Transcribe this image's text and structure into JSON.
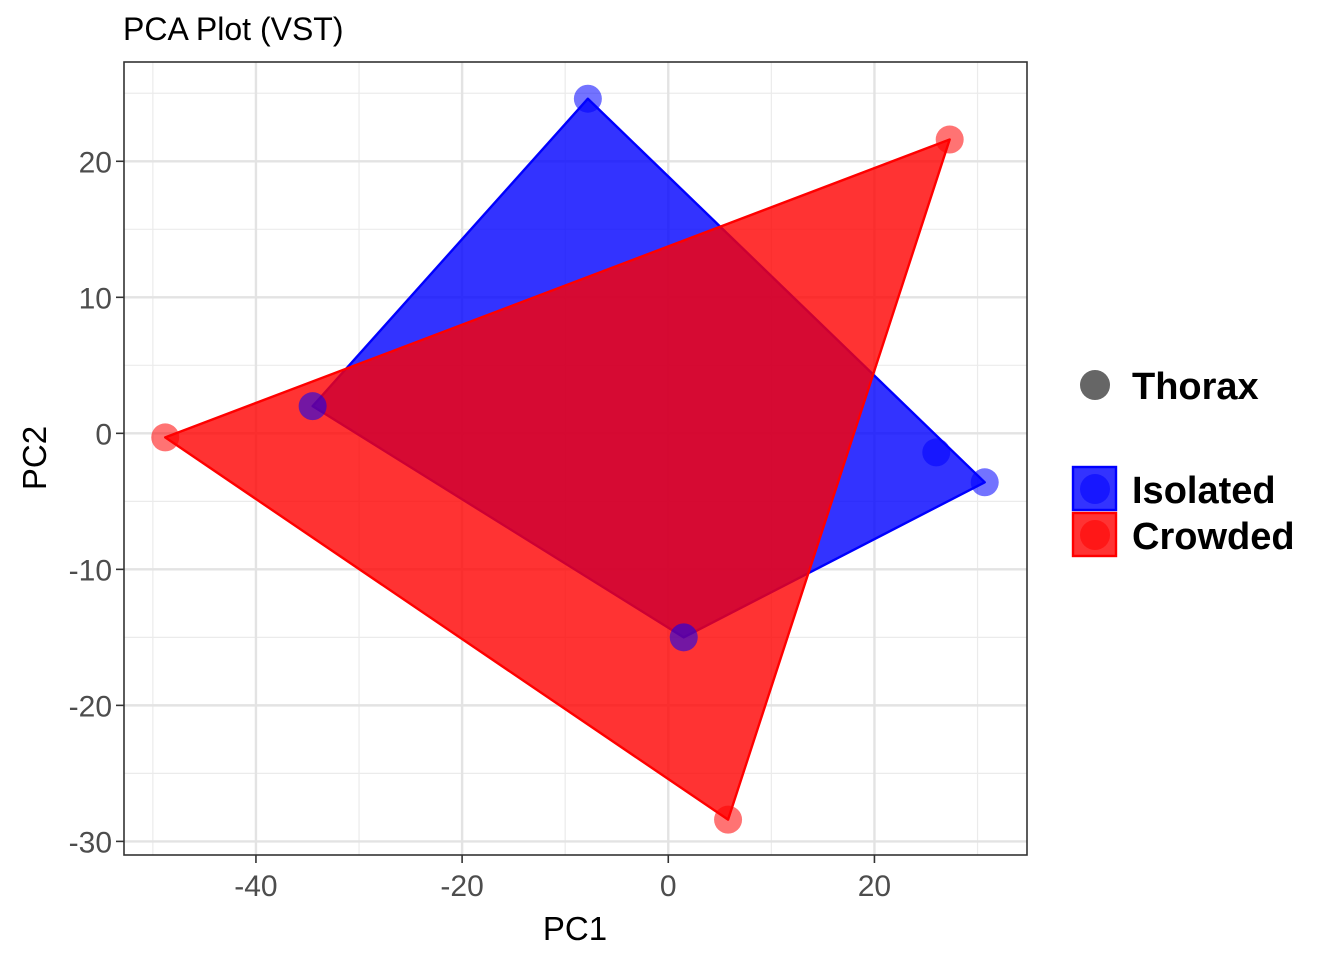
{
  "chart_data": {
    "type": "scatter",
    "title": "PCA Plot (VST)",
    "xlabel": "PC1",
    "ylabel": "PC2",
    "xlim": [
      -52.8,
      34.8
    ],
    "ylim": [
      -31.0,
      27.3
    ],
    "xticks": [
      -40,
      -20,
      0,
      20
    ],
    "yticks": [
      -30,
      -20,
      -10,
      0,
      10,
      20
    ],
    "grid": true,
    "legend_position": "right",
    "shape_legend": [
      {
        "label": "Thorax",
        "color": "#666666"
      }
    ],
    "series": [
      {
        "name": "Isolated",
        "color": "#0000ff",
        "hull": true,
        "points": [
          [
            -7.8,
            24.6
          ],
          [
            -34.5,
            2.0
          ],
          [
            1.5,
            -15.0
          ],
          [
            26.0,
            -1.4
          ],
          [
            30.7,
            -3.6
          ]
        ]
      },
      {
        "name": "Crowded",
        "color": "#ff0000",
        "hull": true,
        "points": [
          [
            27.3,
            21.6
          ],
          [
            -48.8,
            -0.3
          ],
          [
            5.8,
            -28.4
          ]
        ]
      }
    ]
  }
}
